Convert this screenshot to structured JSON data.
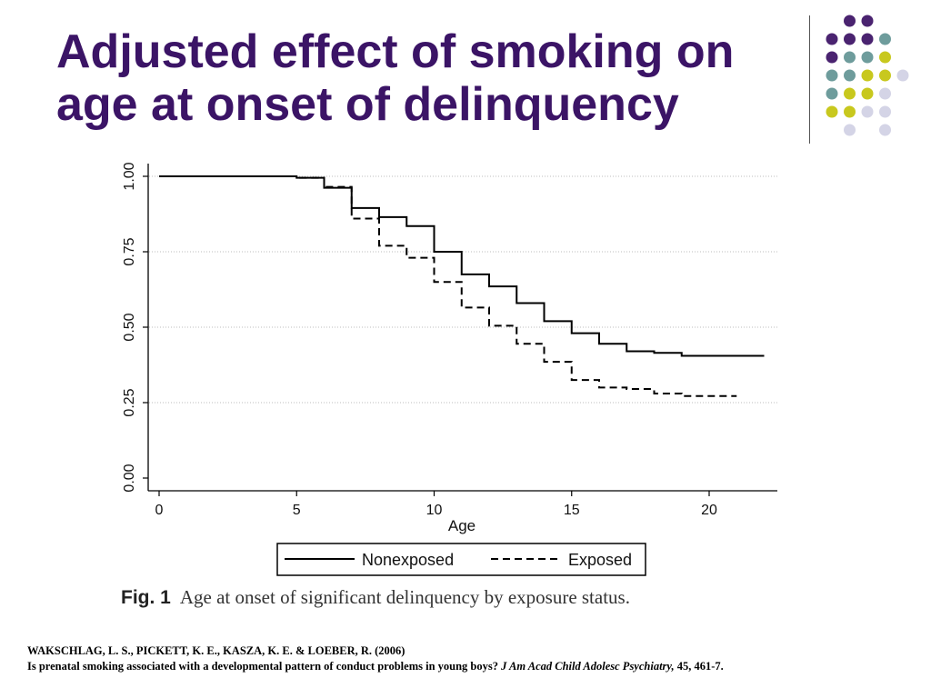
{
  "slide": {
    "title_line1": "Adjusted effect of smoking on",
    "title_line2": "age at onset of delinquency"
  },
  "decoration": {
    "dot_colors": {
      "purple": "#4a2370",
      "teal": "#6e9c9c",
      "lime": "#c8c81e",
      "lavender": "#d4d4e6"
    }
  },
  "chart_data": {
    "type": "line",
    "xlabel": "Age",
    "ylabel": "",
    "xlim": [
      0,
      22
    ],
    "ylim": [
      0,
      1
    ],
    "xticks": [
      0,
      5,
      10,
      15,
      20
    ],
    "xtick_labels": [
      "0",
      "5",
      "10",
      "15",
      "20"
    ],
    "yticks": [
      0,
      0.25,
      0.5,
      0.75,
      1
    ],
    "ytick_labels": [
      "0.00",
      "0.25",
      "0.50",
      "0.75",
      "1.00"
    ],
    "grid": "horizontal dotted lines at y ticks",
    "legend_position": "bottom",
    "series": [
      {
        "name": "Nonexposed",
        "style": "solid",
        "color": "#000000",
        "x": [
          0,
          5,
          6,
          7,
          8,
          9,
          10,
          11,
          12,
          13,
          14,
          15,
          16,
          17,
          18,
          19,
          22
        ],
        "y": [
          1.0,
          0.995,
          0.962,
          0.895,
          0.865,
          0.835,
          0.75,
          0.675,
          0.635,
          0.58,
          0.52,
          0.48,
          0.445,
          0.42,
          0.415,
          0.405,
          0.405
        ]
      },
      {
        "name": "Exposed",
        "style": "dashed",
        "color": "#000000",
        "x": [
          0,
          5,
          6,
          7,
          8,
          9,
          10,
          11,
          12,
          13,
          14,
          15,
          16,
          17,
          18,
          19,
          21
        ],
        "y": [
          1.0,
          0.995,
          0.965,
          0.86,
          0.77,
          0.73,
          0.65,
          0.565,
          0.505,
          0.445,
          0.385,
          0.325,
          0.3,
          0.295,
          0.28,
          0.272,
          0.272
        ]
      }
    ]
  },
  "figure": {
    "label": "Fig. 1",
    "caption": "Age at onset of significant delinquency by exposure status."
  },
  "citation": {
    "authors": "WAKSCHLAG, L. S., PICKETT, K. E., KASZA, K. E. & LOEBER, R. (2006)",
    "article": "Is prenatal smoking associated with a developmental pattern of conduct problems in young boys?",
    "journal": "J Am Acad Child Adolesc Psychiatry,",
    "volume_pages": "45, 461-7."
  }
}
